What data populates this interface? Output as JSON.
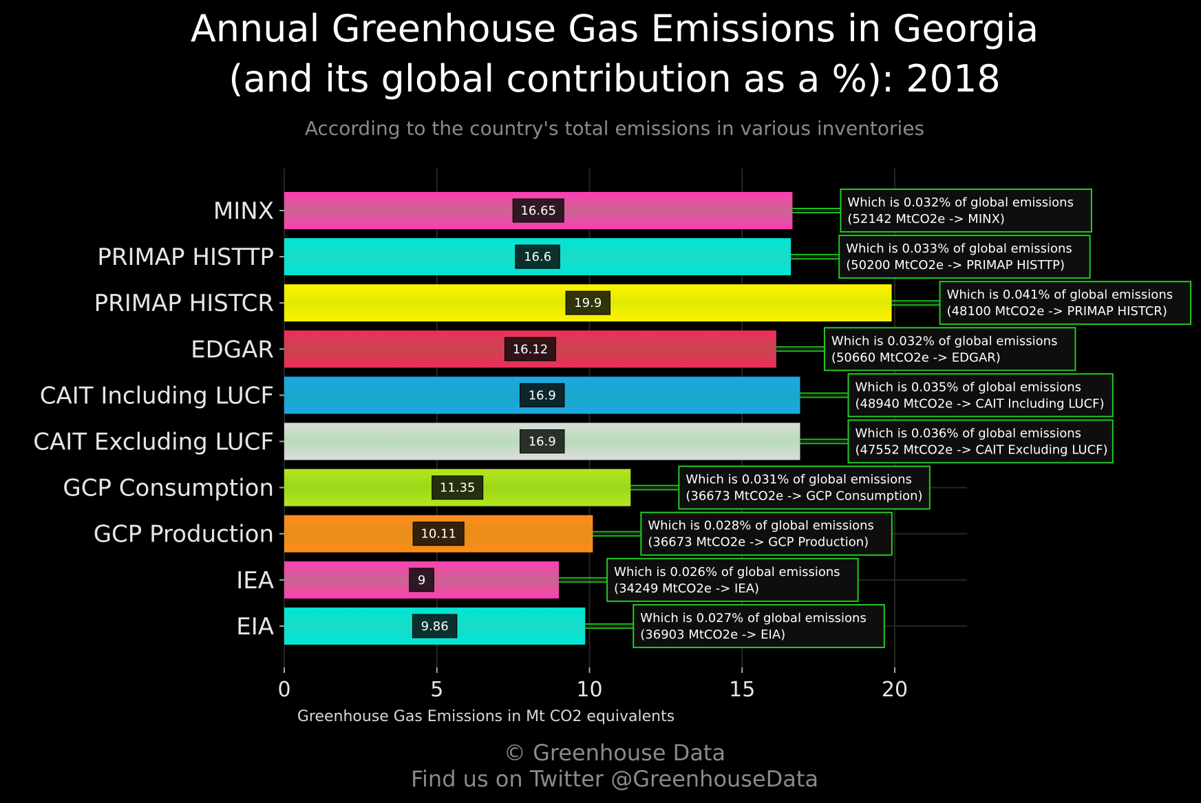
{
  "chart_data": {
    "type": "bar",
    "orientation": "horizontal",
    "title_line1": "Annual Greenhouse Gas Emissions in Georgia",
    "title_line2": "(and its global contribution as a %): 2018",
    "subtitle": "According to the country's total emissions in various inventories",
    "xlabel": "Greenhouse Gas Emissions in Mt CO2 equivalents",
    "ylabel": "",
    "xlim": [
      0,
      22.4
    ],
    "xticks": [
      0,
      5,
      10,
      15,
      20
    ],
    "grid": true,
    "categories": [
      "MINX",
      "PRIMAP HISTTP",
      "PRIMAP HISTCR",
      "EDGAR",
      "CAIT Including LUCF",
      "CAIT Excluding LUCF",
      "GCP Consumption",
      "GCP Production",
      "IEA",
      "EIA"
    ],
    "values": [
      16.65,
      16.6,
      19.9,
      16.12,
      16.9,
      16.9,
      11.35,
      10.11,
      9,
      9.86
    ],
    "value_labels": [
      "16.65",
      "16.6",
      "19.9",
      "16.12",
      "16.9",
      "16.9",
      "11.35",
      "10.11",
      "9",
      "9.86"
    ],
    "colors": [
      "#ff3eb5",
      "#00e5d4",
      "#fff200",
      "#ee2e5a",
      "#1ea7e6",
      "#dcdcdc",
      "#b5e61d",
      "#ff8c1a",
      "#ff3eb5",
      "#00e5d4"
    ],
    "colors_light": [
      "#c96590",
      "#19dcc8",
      "#e0ea00",
      "#c8454e",
      "#19a8c8",
      "#b8dcb8",
      "#9bd81a",
      "#e68e1a",
      "#c96590",
      "#19dcc8"
    ],
    "annotations": [
      {
        "line1": "Which is 0.032% of global emissions",
        "line2": "(52142 MtCO2e -> MINX)"
      },
      {
        "line1": "Which is 0.033% of global emissions",
        "line2": "(50200 MtCO2e -> PRIMAP HISTTP)"
      },
      {
        "line1": "Which is 0.041% of global emissions",
        "line2": "(48100 MtCO2e -> PRIMAP HISTCR)"
      },
      {
        "line1": "Which is 0.032% of global emissions",
        "line2": "(50660 MtCO2e -> EDGAR)"
      },
      {
        "line1": "Which is 0.035% of global emissions",
        "line2": "(48940 MtCO2e -> CAIT Including LUCF)"
      },
      {
        "line1": "Which is 0.036% of global emissions",
        "line2": "(47552 MtCO2e -> CAIT Excluding LUCF)"
      },
      {
        "line1": "Which is 0.031% of global emissions",
        "line2": "(36673 MtCO2e -> GCP Consumption)"
      },
      {
        "line1": "Which is 0.028% of global emissions",
        "line2": "(36673 MtCO2e -> GCP Production)"
      },
      {
        "line1": "Which is 0.026% of global emissions",
        "line2": "(34249 MtCO2e -> IEA)"
      },
      {
        "line1": "Which is 0.027% of global emissions",
        "line2": "(36903 MtCO2e -> EIA)"
      }
    ],
    "annotation_border_color": "#22cc22"
  },
  "footer": {
    "line1": "© Greenhouse Data",
    "line2": "Find us on Twitter @GreenhouseData"
  }
}
